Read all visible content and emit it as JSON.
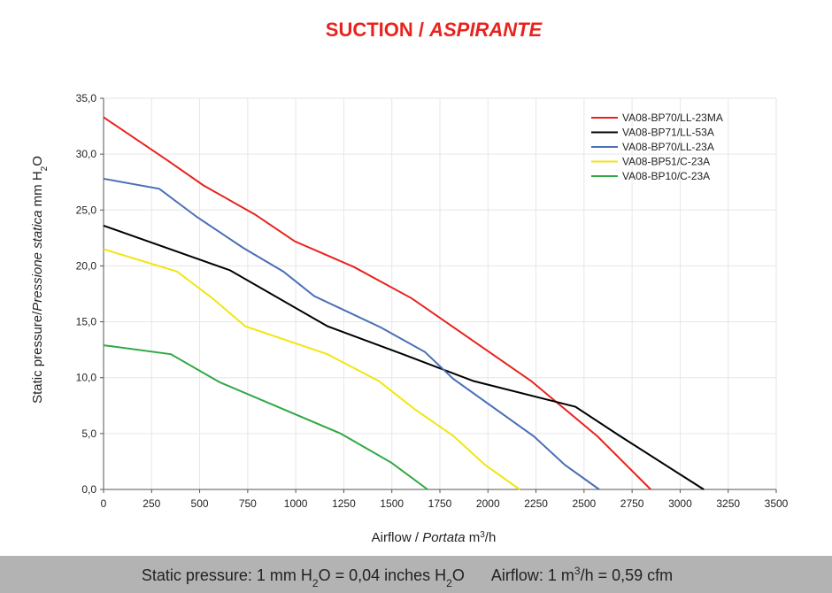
{
  "chart_data": {
    "type": "line",
    "title": [
      "SUCTION / ",
      "ASPIRANTE"
    ],
    "x_label": [
      "Airflow / ",
      "Portata",
      "  m",
      "3",
      "/h"
    ],
    "y_label": [
      "Static pressure/",
      "Pressione statica",
      "  mm  H",
      "2",
      "O"
    ],
    "xlim": [
      0,
      3500
    ],
    "xticks": [
      0,
      250,
      500,
      750,
      1000,
      1250,
      1500,
      1750,
      2000,
      2250,
      2500,
      2750,
      3000,
      3250,
      3500
    ],
    "ylim": [
      0,
      35
    ],
    "yticks": [
      {
        "value": 0,
        "label": "0,0"
      },
      {
        "value": 5,
        "label": "5,0"
      },
      {
        "value": 10,
        "label": "10,0"
      },
      {
        "value": 15,
        "label": "15,0"
      },
      {
        "value": 20,
        "label": "20,0"
      },
      {
        "value": 25,
        "label": "25,0"
      },
      {
        "value": 30,
        "label": "30,0"
      },
      {
        "value": 35,
        "label": "35,0"
      }
    ],
    "grid": true,
    "legend": "upper right",
    "series": [
      {
        "name": "VA08-BP70/LL-23MA",
        "color": "#e8231e",
        "x": [
          0,
          336,
          520,
          788,
          995,
          1303,
          1603,
          2225,
          2570,
          2847
        ],
        "values": [
          33.3,
          29.4,
          27.2,
          24.6,
          22.2,
          19.9,
          17.1,
          9.7,
          4.75,
          0
        ]
      },
      {
        "name": "VA08-BP71/LL-53A",
        "color": "#000000",
        "x": [
          0,
          659,
          1165,
          1557,
          1925,
          2455,
          2685,
          3123
        ],
        "values": [
          23.6,
          19.6,
          14.6,
          12.1,
          9.7,
          7.4,
          4.8,
          0
        ]
      },
      {
        "name": "VA08-BP70/LL-23A",
        "color": "#4a6fb5",
        "x": [
          0,
          290,
          484,
          728,
          935,
          1096,
          1442,
          1672,
          1819,
          2239,
          2400,
          2579
        ],
        "values": [
          27.8,
          26.9,
          24.4,
          21.6,
          19.5,
          17.3,
          14.5,
          12.3,
          9.9,
          4.75,
          2.2,
          0
        ]
      },
      {
        "name": "VA08-BP51/C-23A",
        "color": "#f0e613",
        "x": [
          0,
          382,
          567,
          737,
          1165,
          1432,
          1617,
          1819,
          1985,
          2165
        ],
        "values": [
          21.5,
          19.5,
          17.1,
          14.6,
          12.1,
          9.7,
          7.2,
          4.8,
          2.2,
          0
        ]
      },
      {
        "name": "VA08-BP10/C-23A",
        "color": "#2fa845",
        "x": [
          0,
          350,
          603,
          1234,
          1497,
          1686
        ],
        "values": [
          12.9,
          12.1,
          9.6,
          5.0,
          2.4,
          0
        ]
      }
    ]
  },
  "footer": [
    "Static pressure: 1 mm H",
    "2",
    "O = 0,04 inches H",
    "2",
    "O",
    "Airflow: 1 m",
    "3",
    "/h = 0,59 cfm"
  ]
}
